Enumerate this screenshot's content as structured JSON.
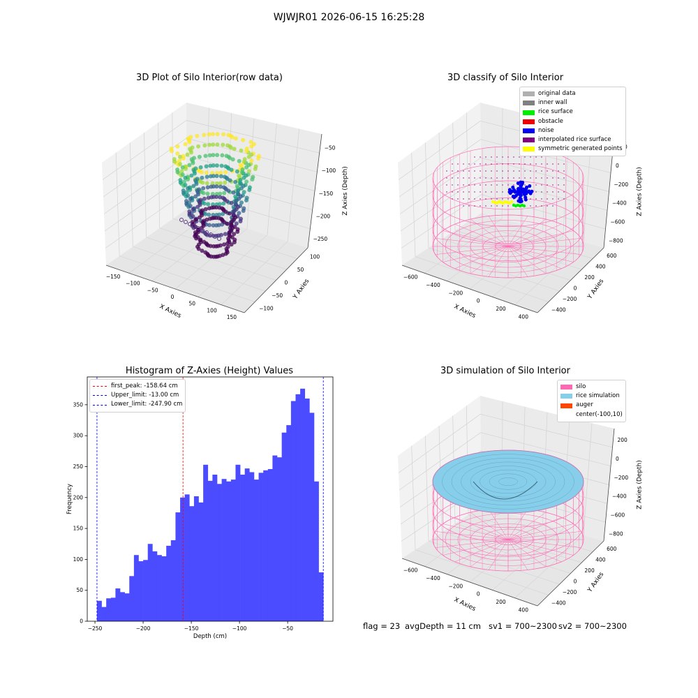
{
  "suptitle": "WJWJR01 2026-06-15 16:25:28",
  "plots": {
    "raw": {
      "title": "3D Plot of Silo Interior(row data)",
      "xlabel": "X Axies",
      "ylabel": "Y Axies",
      "zlabel": "Z Axies (Depth)",
      "xticks": [
        "−150",
        "−100",
        "−50",
        "0",
        "50",
        "100",
        "150"
      ],
      "yticks": [
        "−100",
        "−50",
        "0",
        "50",
        "100"
      ],
      "zticks": [
        "−50",
        "−100",
        "−150",
        "−200",
        "−250"
      ]
    },
    "classify": {
      "title": "3D classify of Silo Interior",
      "xlabel": "X Axies",
      "ylabel": "Y Axies",
      "zlabel": "Z Axies (Depth)",
      "xticks": [
        "−600",
        "−400",
        "−200",
        "0",
        "200",
        "400"
      ],
      "yticks": [
        "−400",
        "−200",
        "0",
        "200",
        "400",
        "600"
      ],
      "zticks": [
        "200",
        "0",
        "−200",
        "−400",
        "−600",
        "−800"
      ],
      "legend": [
        {
          "label": "original data",
          "color": "#b0b0b0"
        },
        {
          "label": "inner wall",
          "color": "#808080"
        },
        {
          "label": "rice surface",
          "color": "#00ee00"
        },
        {
          "label": "obstacle",
          "color": "#ee0000"
        },
        {
          "label": "noise",
          "color": "#0000ee"
        },
        {
          "label": "interpolated rice surface",
          "color": "#800080"
        },
        {
          "label": "symmetric generated points",
          "color": "#ffff00"
        }
      ]
    },
    "simulation": {
      "title": "3D simulation of Silo Interior",
      "xlabel": "X Axies",
      "ylabel": "Y Axies",
      "zlabel": "Z Axies (Depth)",
      "xticks": [
        "−600",
        "−400",
        "−200",
        "0",
        "200",
        "400"
      ],
      "yticks": [
        "−400",
        "−200",
        "0",
        "200",
        "400",
        "600"
      ],
      "zticks": [
        "200",
        "0",
        "−200",
        "−400",
        "−600",
        "−800"
      ],
      "legend": [
        {
          "label": "silo",
          "color": "#ff69b4"
        },
        {
          "label": "rice simulation",
          "color": "#87ceeb"
        },
        {
          "label": "auger",
          "color": "#ff4500"
        },
        {
          "label": "center(-100,10)",
          "color": ""
        }
      ]
    }
  },
  "chart_data": {
    "type": "bar",
    "title": "Histogram of Z-Axies (Height) Values",
    "xlabel": "Depth (cm)",
    "ylabel": "Frequency",
    "xlim": [
      -258,
      -3
    ],
    "ylim": [
      0,
      395
    ],
    "xticks": [
      -250,
      -200,
      -150,
      -100,
      -50
    ],
    "xtick_labels": [
      "−250",
      "−200",
      "−150",
      "−100",
      "−50"
    ],
    "yticks": [
      0,
      50,
      100,
      150,
      200,
      250,
      300,
      350
    ],
    "bin_start": -247.9,
    "bin_end": -13.0,
    "values": [
      33,
      23,
      37,
      38,
      53,
      47,
      45,
      73,
      107,
      97,
      99,
      125,
      113,
      107,
      105,
      122,
      131,
      176,
      200,
      205,
      186,
      202,
      192,
      253,
      227,
      237,
      222,
      230,
      226,
      229,
      253,
      237,
      247,
      241,
      229,
      240,
      244,
      246,
      268,
      265,
      305,
      317,
      356,
      367,
      376,
      360,
      337,
      226,
      79
    ],
    "color": "#4b4bff",
    "vlines": [
      {
        "label": "first_peak: -158.64 cm",
        "x": -158.64,
        "color": "#ff0000"
      },
      {
        "label": "Upper_limit: -13.00 cm",
        "x": -13.0,
        "color": "#0000ff"
      },
      {
        "label": "Lower_limit: -247.90 cm",
        "x": -247.9,
        "color": "#0000ff"
      }
    ],
    "legend_position": "top-left"
  },
  "status": {
    "flag": "flag = 23",
    "avg": "avgDepth = 11 cm",
    "sv1": "sv1 = 700~2300",
    "sv2": "sv2 = 700~2300"
  }
}
